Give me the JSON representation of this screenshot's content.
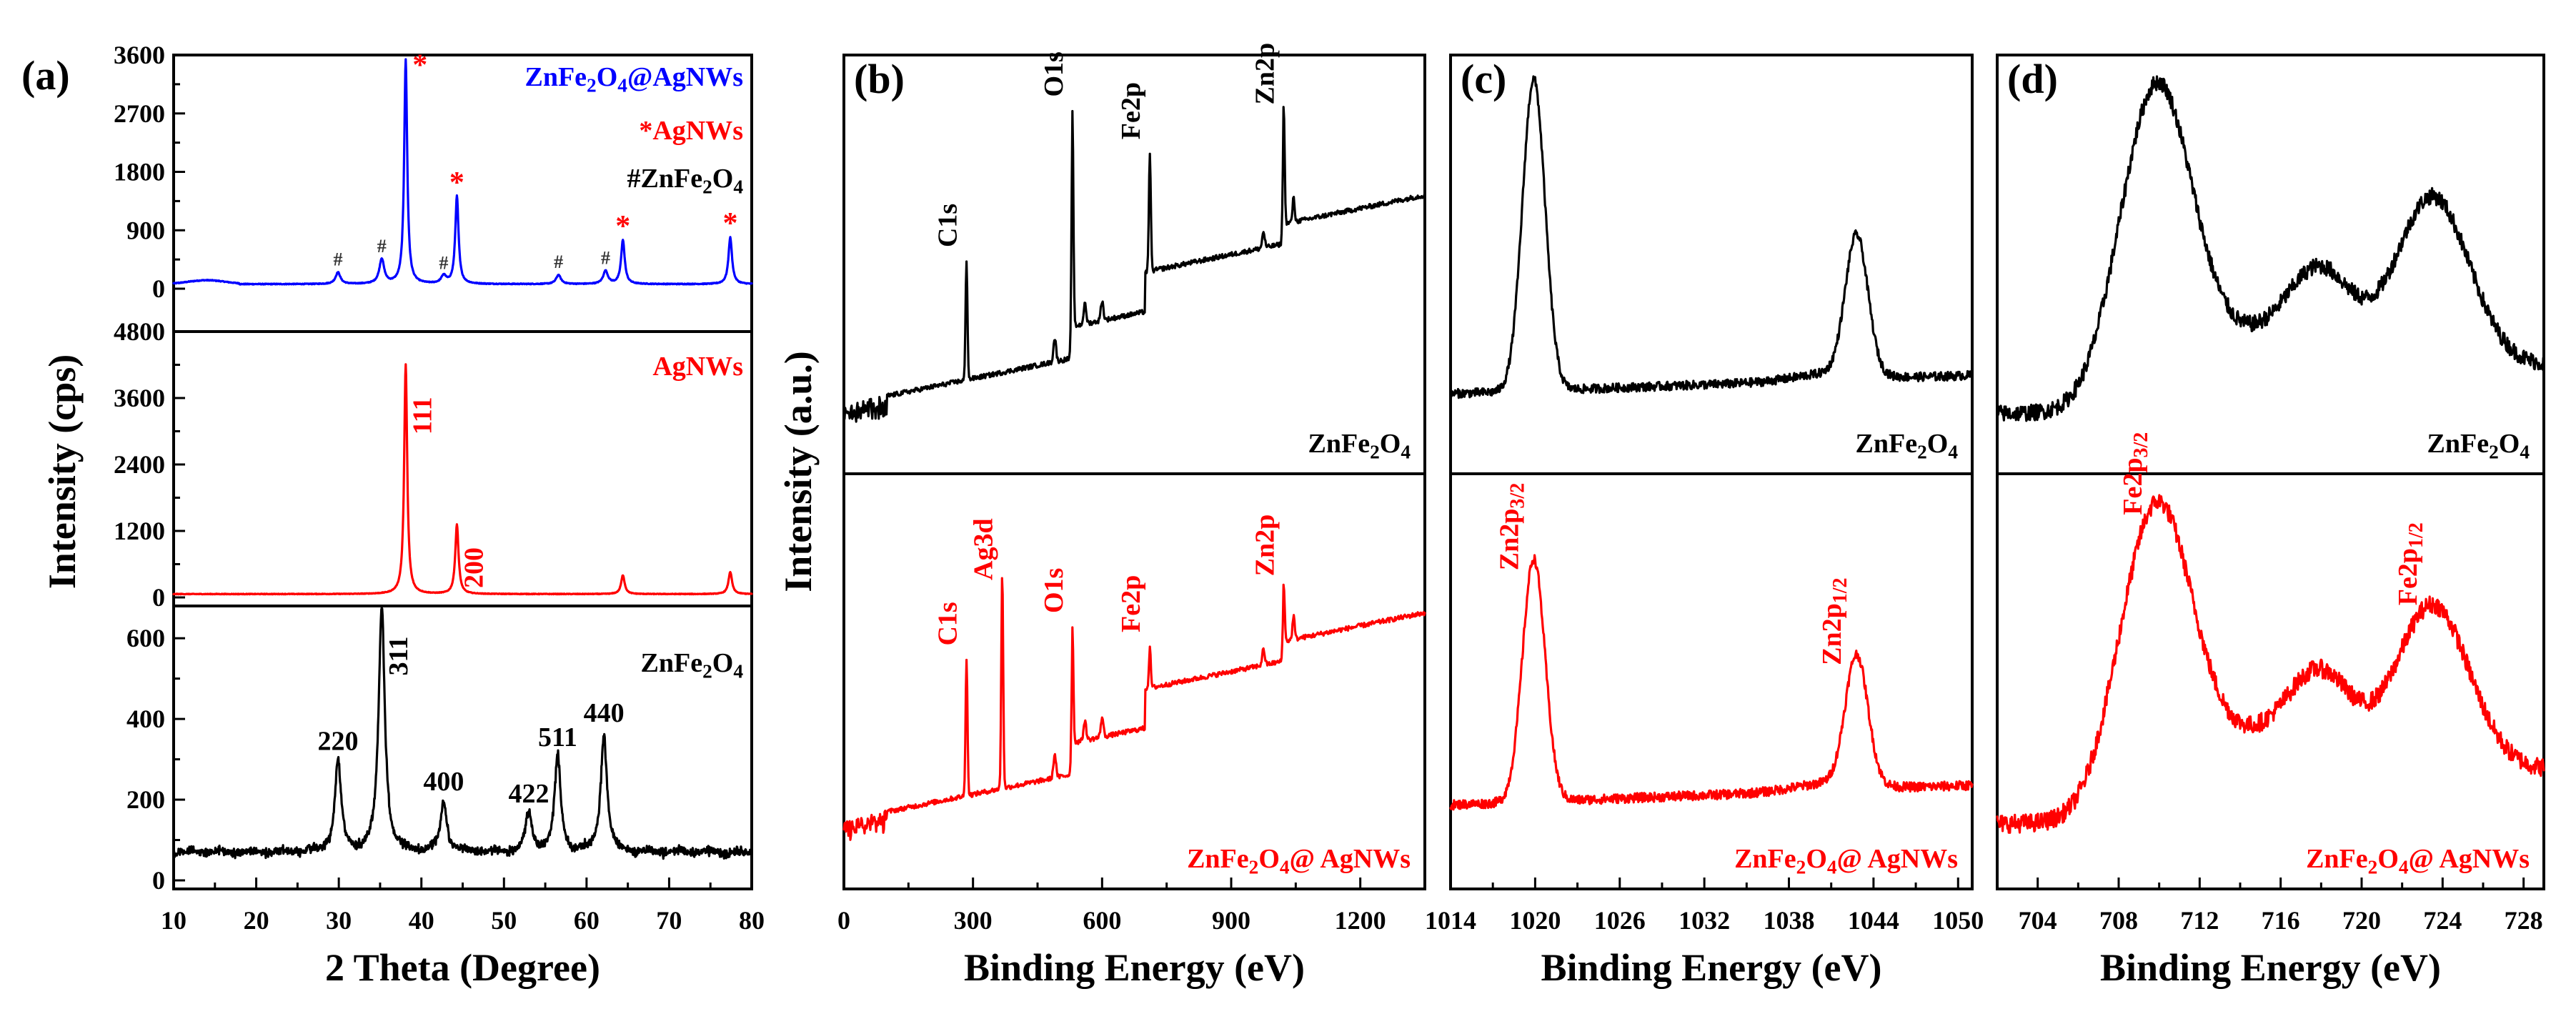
{
  "figure": {
    "panel_tags": [
      "(a)",
      "(b)",
      "(c)",
      "(d)"
    ],
    "y_label_left": "Intensity (cps)",
    "y_label_xps": "Intensity (a.u.)"
  },
  "colors": {
    "black": "#000000",
    "red": "#ff0000",
    "blue": "#0000ff"
  },
  "chart_data": [
    {
      "panel": "(a) top",
      "type": "line",
      "series_name": "ZnFe2O4@AgNWs",
      "color": "#0000ff",
      "xlim": [
        10,
        80
      ],
      "ylim": [
        0,
        3600
      ],
      "yticks": [
        "0",
        "900",
        "1800",
        "2700",
        "3600"
      ],
      "legend": [
        "ZnFe2O4@AgNWs",
        "*AgNWs",
        "#ZnFe2O4"
      ],
      "baseline": 70,
      "peaks": [
        {
          "x": 29.9,
          "y": 180,
          "w": 0.35,
          "mark": "#"
        },
        {
          "x": 35.2,
          "y": 380,
          "w": 0.35,
          "mark": "#"
        },
        {
          "x": 38.1,
          "y": 3450,
          "w": 0.22,
          "mark": "*"
        },
        {
          "x": 42.7,
          "y": 120,
          "w": 0.35,
          "mark": "#"
        },
        {
          "x": 44.3,
          "y": 1350,
          "w": 0.24,
          "mark": "*"
        },
        {
          "x": 56.6,
          "y": 140,
          "w": 0.35,
          "mark": "#"
        },
        {
          "x": 62.3,
          "y": 200,
          "w": 0.35,
          "mark": "#"
        },
        {
          "x": 64.4,
          "y": 680,
          "w": 0.26,
          "mark": "*"
        },
        {
          "x": 77.4,
          "y": 720,
          "w": 0.26,
          "mark": "*"
        }
      ]
    },
    {
      "panel": "(a) middle",
      "type": "line",
      "series_name": "AgNWs",
      "color": "#ff0000",
      "xlim": [
        10,
        80
      ],
      "ylim": [
        0,
        4800
      ],
      "yticks": [
        "0",
        "1200",
        "2400",
        "3600",
        "4800"
      ],
      "label": "AgNWs",
      "baseline": 60,
      "peaks": [
        {
          "x": 38.1,
          "y": 4150,
          "w": 0.22,
          "hkl": "111"
        },
        {
          "x": 44.3,
          "y": 1250,
          "w": 0.24,
          "hkl": "200"
        },
        {
          "x": 64.4,
          "y": 340,
          "w": 0.26,
          "hkl": ""
        },
        {
          "x": 77.4,
          "y": 400,
          "w": 0.26,
          "hkl": ""
        }
      ]
    },
    {
      "panel": "(a) bottom",
      "type": "line",
      "series_name": "ZnFe2O4",
      "color": "#000000",
      "xlim": [
        10,
        80
      ],
      "ylim": [
        0,
        680
      ],
      "yticks": [
        "0",
        "200",
        "400",
        "600"
      ],
      "xticks": [
        "10",
        "20",
        "30",
        "40",
        "50",
        "60",
        "70",
        "80"
      ],
      "xlabel": "2 Theta (Degree)",
      "label": "ZnFe2O4",
      "baseline": 70,
      "peaks": [
        {
          "x": 29.9,
          "y": 225,
          "w": 0.45,
          "hkl": "220"
        },
        {
          "x": 35.2,
          "y": 610,
          "w": 0.45,
          "hkl": "311"
        },
        {
          "x": 42.7,
          "y": 125,
          "w": 0.45,
          "hkl": "400"
        },
        {
          "x": 53.0,
          "y": 95,
          "w": 0.45,
          "hkl": "422"
        },
        {
          "x": 56.5,
          "y": 235,
          "w": 0.45,
          "hkl": "511"
        },
        {
          "x": 62.1,
          "y": 295,
          "w": 0.45,
          "hkl": "440"
        }
      ]
    },
    {
      "panel": "(b)",
      "type": "line",
      "xlim": [
        0,
        1350
      ],
      "xticks": [
        "0",
        "300",
        "600",
        "900",
        "1200"
      ],
      "xlabel": "Binding Energy (eV)",
      "series": [
        {
          "name": "ZnFe2O4",
          "color": "#000000",
          "peaks": [
            {
              "x": 285,
              "h": 0.3,
              "label": "C1s"
            },
            {
              "x": 531,
              "h": 0.55,
              "label": "O1s"
            },
            {
              "x": 711,
              "h": 0.3,
              "label": "Fe2p"
            },
            {
              "x": 1022,
              "h": 0.3,
              "label": "Zn2p"
            }
          ]
        },
        {
          "name": "ZnFe2O4@ AgNWs",
          "color": "#ff0000",
          "peaks": [
            {
              "x": 285,
              "h": 0.35,
              "label": "C1s"
            },
            {
              "x": 368,
              "h": 0.55,
              "label": "Ag3d"
            },
            {
              "x": 531,
              "h": 0.3,
              "label": "O1s"
            },
            {
              "x": 711,
              "h": 0.1,
              "label": "Fe2p"
            },
            {
              "x": 1022,
              "h": 0.15,
              "label": "Zn2p"
            }
          ]
        }
      ]
    },
    {
      "panel": "(c)",
      "type": "line",
      "xlim": [
        1014,
        1051
      ],
      "xticks": [
        "1014",
        "1020",
        "1026",
        "1032",
        "1038",
        "1044",
        "1050"
      ],
      "xlabel": "Binding Energy (eV)",
      "series": [
        {
          "name": "ZnFe2O4",
          "color": "#000000",
          "peaks": [
            {
              "x": 1019.9,
              "h": 0.85,
              "w": 0.8,
              "label": ""
            },
            {
              "x": 1042.8,
              "h": 0.38,
              "w": 0.8,
              "label": ""
            }
          ]
        },
        {
          "name": "ZnFe2O4@ AgNWs",
          "color": "#ff0000",
          "peaks": [
            {
              "x": 1019.9,
              "h": 0.62,
              "w": 0.8,
              "label": "Zn2p3/2"
            },
            {
              "x": 1042.8,
              "h": 0.33,
              "w": 0.8,
              "label": "Zn2p1/2"
            }
          ]
        }
      ]
    },
    {
      "panel": "(d)",
      "type": "line",
      "xlim": [
        702,
        729
      ],
      "xticks": [
        "704",
        "708",
        "712",
        "716",
        "720",
        "724",
        "728"
      ],
      "xlabel": "Binding Energy (eV)",
      "series": [
        {
          "name": "ZnFe2O4",
          "color": "#000000",
          "peaks": [
            {
              "x": 709.9,
              "h": 0.86,
              "w": 1.7,
              "label": ""
            },
            {
              "x": 718.0,
              "h": 0.27,
              "w": 1.6,
              "label": ""
            },
            {
              "x": 723.5,
              "h": 0.52,
              "w": 1.8,
              "label": ""
            }
          ]
        },
        {
          "name": "ZnFe2O4@ AgNWs",
          "color": "#ff0000",
          "peaks": [
            {
              "x": 709.9,
              "h": 0.72,
              "w": 1.7,
              "label": "Fe2p3/2"
            },
            {
              "x": 718.0,
              "h": 0.24,
              "w": 1.6,
              "label": ""
            },
            {
              "x": 723.5,
              "h": 0.45,
              "w": 1.8,
              "label": "Fe2p1/2"
            }
          ]
        }
      ]
    }
  ]
}
